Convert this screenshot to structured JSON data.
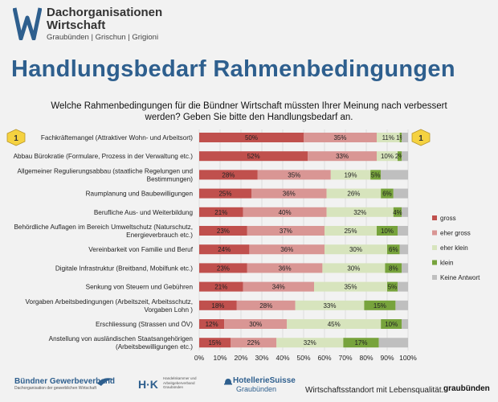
{
  "header": {
    "org_name_line1": "Dachorganisationen",
    "org_name_line2": "Wirtschaft",
    "org_sub": "Graubünden | Grischun | Grigioni",
    "title": "Handlungsbedarf Rahmenbedingungen",
    "question_line1": "Welche Rahmenbedingungen für die Bündner Wirtschaft müssten Ihrer Meinung nach verbessert",
    "question_line2": "werden? Geben Sie bitte den Handlungsbedarf an."
  },
  "colors": {
    "gross": "#c0504d",
    "eher_gross": "#d99694",
    "eher_klein": "#d7e4bd",
    "klein": "#77a33c",
    "keine_antwort": "#bfbfbf",
    "title": "#2e5f8e",
    "badge": "#f5d240"
  },
  "chart_data": {
    "type": "bar",
    "orientation": "horizontal",
    "stacked": true,
    "categories": [
      [
        "Fachkräftemangel (Attraktiver Wohn- und Arbeitsort)"
      ],
      [
        "Abbau Bürokratie (Formulare, Prozess in der Verwaltung etc.)"
      ],
      [
        "Allgemeiner Regulierungsabbau (staatliche Regelungen und",
        "Bestimmungen)"
      ],
      [
        "Raumplanung und Baubewilligungen"
      ],
      [
        "Berufliche Aus- und Weiterbildung"
      ],
      [
        "Behördliche Auflagen im Bereich Umweltschutz (Naturschutz,",
        "Energieverbrauch etc.)"
      ],
      [
        "Vereinbarkeit von Familie und Beruf"
      ],
      [
        "Digitale Infrastruktur (Breitband, Mobilfunk etc.)"
      ],
      [
        "Senkung von Steuern und Gebühren"
      ],
      [
        "Vorgaben Arbeitsbedingungen (Arbeitszeit, Arbeitsschutz,",
        "Vorgaben Lohn )"
      ],
      [
        "Erschliessung (Strassen und ÖV)"
      ],
      [
        "Anstellung von ausländischen Staatsangehörigen",
        "(Arbeitsbewilligungen etc.)"
      ]
    ],
    "series": [
      {
        "name": "gross",
        "values": [
          50,
          52,
          28,
          25,
          21,
          23,
          24,
          23,
          21,
          18,
          12,
          15
        ]
      },
      {
        "name": "eher gross",
        "values": [
          35,
          33,
          35,
          36,
          40,
          37,
          36,
          36,
          34,
          28,
          30,
          22
        ]
      },
      {
        "name": "eher klein",
        "values": [
          11,
          10,
          19,
          26,
          32,
          25,
          30,
          30,
          35,
          33,
          45,
          32
        ]
      },
      {
        "name": "klein",
        "values": [
          1,
          2,
          5,
          6,
          4,
          10,
          6,
          8,
          5,
          15,
          10,
          17
        ]
      },
      {
        "name": "Keine Antwort",
        "values": [
          3,
          3,
          13,
          7,
          3,
          5,
          4,
          3,
          5,
          6,
          3,
          14
        ]
      }
    ],
    "labels": [
      [
        "50%",
        "35%",
        "11%",
        "1%",
        ""
      ],
      [
        "52%",
        "33%",
        "10%",
        "2%",
        ""
      ],
      [
        "28%",
        "35%",
        "19%",
        "5%",
        ""
      ],
      [
        "25%",
        "36%",
        "26%",
        "6%",
        ""
      ],
      [
        "21%",
        "40%",
        "32%",
        "4%",
        ""
      ],
      [
        "23%",
        "37%",
        "25%",
        "10%",
        ""
      ],
      [
        "24%",
        "36%",
        "30%",
        "6%",
        ""
      ],
      [
        "23%",
        "36%",
        "30%",
        "8%",
        ""
      ],
      [
        "21%",
        "34%",
        "35%",
        "5%",
        ""
      ],
      [
        "18%",
        "28%",
        "33%",
        "15%",
        ""
      ],
      [
        "12%",
        "30%",
        "45%",
        "10%",
        ""
      ],
      [
        "15%",
        "22%",
        "32%",
        "17%",
        ""
      ]
    ],
    "x_ticks": [
      "0%",
      "10%",
      "20%",
      "30%",
      "40%",
      "50%",
      "60%",
      "70%",
      "80%",
      "90%",
      "100%"
    ],
    "xlim": [
      0,
      100
    ],
    "legend": [
      "gross",
      "eher gross",
      "eher klein",
      "klein",
      "Keine Antwort"
    ],
    "legend_position": "right",
    "badges": [
      "1",
      "1"
    ]
  },
  "footer": {
    "gewerbe_name": "Bündner Gewerbeverband",
    "gewerbe_sub": "Dachorganisation der gewerblichen Wirtschaft",
    "hk_logo": "H·K",
    "hk_sub1": "Handelskammer und",
    "hk_sub2": "Arbeitgeberverband",
    "hk_sub3": "Graubünden",
    "hotellerie_line1": "HotellerieSuisse",
    "hotellerie_line2": "Graubünden",
    "slogan": "Wirtschaftsstandort mit Lebensqualität.",
    "gr_logo": "graubünden"
  }
}
